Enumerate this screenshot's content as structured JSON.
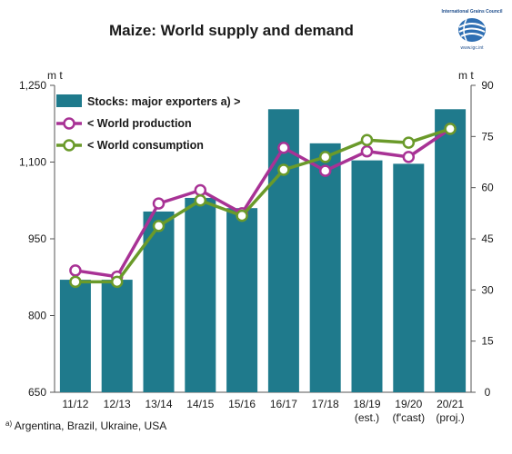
{
  "title": "Maize: World supply and demand",
  "logo": {
    "org": "International Grains Council",
    "url": "www.igc.int"
  },
  "unit_left": "m t",
  "unit_right": "m t",
  "footnote": {
    "mark": "a)",
    "text": "Argentina, Brazil, Ukraine, USA"
  },
  "colors": {
    "bars": "#1f7a8c",
    "production": "#a83295",
    "consumption": "#6a9a2a"
  },
  "chart_data": {
    "type": "bar",
    "categories": [
      "11/12",
      "12/13",
      "13/14",
      "14/15",
      "15/16",
      "16/17",
      "17/18",
      "18/19",
      "19/20",
      "20/21"
    ],
    "category_sublabels": [
      "",
      "",
      "",
      "",
      "",
      "",
      "",
      "(est.)",
      "(f'cast)",
      "(proj.)"
    ],
    "left_axis": {
      "label": "m t",
      "ylim": [
        650,
        1250
      ],
      "ticks": [
        "650",
        "800",
        "950",
        "1,100",
        "1,250"
      ]
    },
    "right_axis": {
      "label": "m t",
      "ylim": [
        0,
        90
      ],
      "ticks": [
        "0",
        "15",
        "30",
        "45",
        "60",
        "75",
        "90"
      ]
    },
    "series": [
      {
        "name": "Stocks: major exporters a) >",
        "type": "bar",
        "axis": "right",
        "values": [
          33,
          33,
          53,
          57,
          54,
          83,
          73,
          68,
          67,
          83
        ]
      },
      {
        "name": "< World production",
        "type": "line",
        "axis": "left",
        "values": [
          888,
          876,
          1019,
          1045,
          1000,
          1128,
          1083,
          1121,
          1110,
          1165
        ]
      },
      {
        "name": "< World consumption",
        "type": "line",
        "axis": "left",
        "values": [
          866,
          866,
          975,
          1025,
          995,
          1085,
          1110,
          1143,
          1138,
          1165
        ]
      }
    ],
    "legend_position": "top-left",
    "grid": false
  }
}
